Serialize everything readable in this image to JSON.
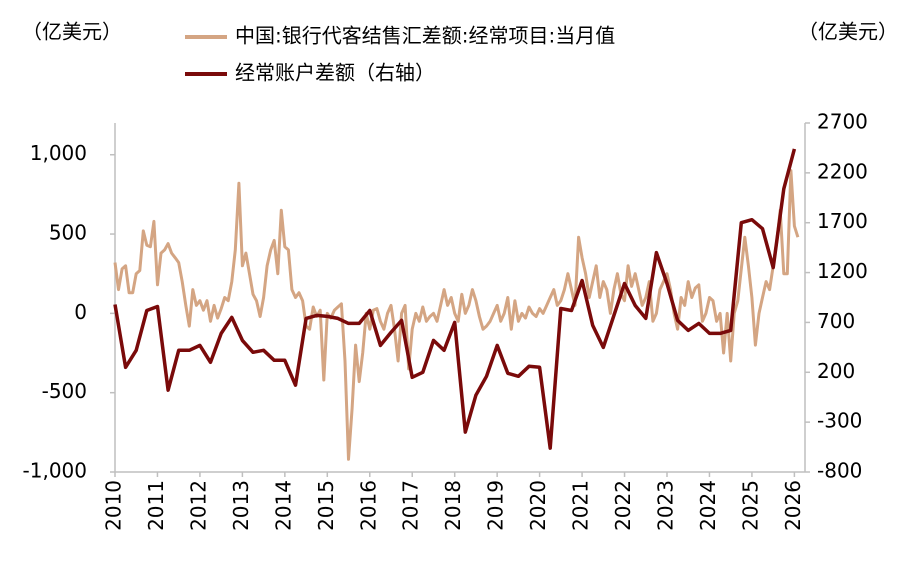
{
  "chart_data": {
    "type": "line",
    "y_label": "（亿美元）",
    "y2_label": "（亿美元）",
    "xlim": [
      2010,
      2026.25
    ],
    "xticks": [
      2010,
      2011,
      2012,
      2013,
      2014,
      2015,
      2016,
      2017,
      2018,
      2019,
      2020,
      2021,
      2022,
      2023,
      2024,
      2025,
      2026
    ],
    "ylim": [
      -1000,
      1200
    ],
    "yticks": [
      {
        "value": 1000,
        "label": "1,000"
      },
      500,
      0,
      -500,
      {
        "value": -1000,
        "label": "-1,000"
      }
    ],
    "y2lim": [
      -800,
      2700
    ],
    "y2ticks": [
      2700,
      2200,
      1700,
      1200,
      700,
      200,
      -300,
      -800
    ],
    "legend": "top",
    "series": [
      {
        "name": "中国:银行代客结售汇差额:经常项目:当月值",
        "color": "#d4a583",
        "x": [
          2010,
          2010.083,
          2010.167,
          2010.25,
          2010.333,
          2010.417,
          2010.5,
          2010.583,
          2010.667,
          2010.75,
          2010.833,
          2010.917,
          2011,
          2011.083,
          2011.167,
          2011.25,
          2011.333,
          2011.417,
          2011.5,
          2011.583,
          2011.667,
          2011.75,
          2011.833,
          2011.917,
          2012,
          2012.083,
          2012.167,
          2012.25,
          2012.333,
          2012.417,
          2012.5,
          2012.583,
          2012.667,
          2012.75,
          2012.833,
          2012.917,
          2013,
          2013.083,
          2013.167,
          2013.25,
          2013.333,
          2013.417,
          2013.5,
          2013.583,
          2013.667,
          2013.75,
          2013.833,
          2013.917,
          2014,
          2014.083,
          2014.167,
          2014.25,
          2014.333,
          2014.417,
          2014.5,
          2014.583,
          2014.667,
          2014.75,
          2014.833,
          2014.917,
          2015,
          2015.083,
          2015.167,
          2015.25,
          2015.333,
          2015.417,
          2015.5,
          2015.583,
          2015.667,
          2015.75,
          2015.833,
          2015.917,
          2016,
          2016.083,
          2016.167,
          2016.25,
          2016.333,
          2016.417,
          2016.5,
          2016.583,
          2016.667,
          2016.75,
          2016.833,
          2016.917,
          2017,
          2017.083,
          2017.167,
          2017.25,
          2017.333,
          2017.417,
          2017.5,
          2017.583,
          2017.667,
          2017.75,
          2017.833,
          2017.917,
          2018,
          2018.083,
          2018.167,
          2018.25,
          2018.333,
          2018.417,
          2018.5,
          2018.583,
          2018.667,
          2018.75,
          2018.833,
          2018.917,
          2019,
          2019.083,
          2019.167,
          2019.25,
          2019.333,
          2019.417,
          2019.5,
          2019.583,
          2019.667,
          2019.75,
          2019.833,
          2019.917,
          2020,
          2020.083,
          2020.167,
          2020.25,
          2020.333,
          2020.417,
          2020.5,
          2020.583,
          2020.667,
          2020.75,
          2020.833,
          2020.917,
          2021,
          2021.083,
          2021.167,
          2021.25,
          2021.333,
          2021.417,
          2021.5,
          2021.583,
          2021.667,
          2021.75,
          2021.833,
          2021.917,
          2022,
          2022.083,
          2022.167,
          2022.25,
          2022.333,
          2022.417,
          2022.5,
          2022.583,
          2022.667,
          2022.75,
          2022.833,
          2022.917,
          2023,
          2023.083,
          2023.167,
          2023.25,
          2023.333,
          2023.417,
          2023.5,
          2023.583,
          2023.667,
          2023.75,
          2023.833,
          2023.917,
          2024,
          2024.083,
          2024.167,
          2024.25,
          2024.333,
          2024.417,
          2024.5,
          2024.583,
          2024.667,
          2024.75,
          2024.833,
          2024.917,
          2025,
          2025.083,
          2025.167,
          2025.25,
          2025.333,
          2025.417,
          2025.5,
          2025.583,
          2025.667,
          2025.75,
          2025.833,
          2025.917,
          2026,
          2026.083
        ],
        "values": [
          320,
          150,
          280,
          300,
          130,
          130,
          250,
          270,
          520,
          430,
          420,
          580,
          180,
          380,
          400,
          440,
          380,
          350,
          320,
          200,
          50,
          -80,
          150,
          50,
          80,
          20,
          80,
          -50,
          50,
          -30,
          30,
          100,
          80,
          200,
          400,
          820,
          300,
          380,
          250,
          120,
          80,
          -20,
          100,
          300,
          400,
          460,
          250,
          650,
          420,
          400,
          150,
          100,
          130,
          80,
          -80,
          -100,
          40,
          -20,
          20,
          -420,
          0,
          -30,
          20,
          40,
          60,
          -300,
          -920,
          -600,
          -200,
          -430,
          -250,
          0,
          -100,
          20,
          30,
          -50,
          -100,
          0,
          50,
          -100,
          -300,
          0,
          50,
          -350,
          -100,
          0,
          -50,
          40,
          -50,
          -20,
          0,
          -50,
          50,
          150,
          50,
          100,
          0,
          -50,
          120,
          0,
          50,
          150,
          80,
          -20,
          -100,
          -80,
          -50,
          0,
          50,
          -50,
          0,
          100,
          -100,
          80,
          -50,
          0,
          -30,
          40,
          0,
          -20,
          30,
          0,
          50,
          100,
          150,
          50,
          80,
          150,
          250,
          150,
          50,
          480,
          350,
          250,
          100,
          200,
          300,
          100,
          200,
          150,
          0,
          150,
          250,
          120,
          80,
          300,
          170,
          250,
          150,
          50,
          100,
          200,
          -50,
          0,
          150,
          200,
          250,
          150,
          0,
          -100,
          100,
          50,
          200,
          100,
          160,
          180,
          -50,
          0,
          100,
          80,
          -50,
          0,
          -250,
          0,
          -300,
          0,
          80,
          280,
          480,
          300,
          100,
          -200,
          0,
          100,
          200,
          150,
          300,
          450,
          650,
          250,
          250,
          900,
          550,
          480
        ]
      },
      {
        "name": "经常账户差额（右轴）",
        "color": "#7a0a0a",
        "axis": "y2",
        "x": [
          2010,
          2010.25,
          2010.5,
          2010.75,
          2011,
          2011.25,
          2011.5,
          2011.75,
          2012,
          2012.25,
          2012.5,
          2012.75,
          2013,
          2013.25,
          2013.5,
          2013.75,
          2014,
          2014.25,
          2014.5,
          2014.75,
          2015,
          2015.25,
          2015.5,
          2015.75,
          2016,
          2016.25,
          2016.5,
          2016.75,
          2017,
          2017.25,
          2017.5,
          2017.75,
          2018,
          2018.25,
          2018.5,
          2018.75,
          2019,
          2019.25,
          2019.5,
          2019.75,
          2020,
          2020.25,
          2020.5,
          2020.75,
          2021,
          2021.25,
          2021.5,
          2021.75,
          2022,
          2022.25,
          2022.5,
          2022.75,
          2023,
          2023.25,
          2023.5,
          2023.75,
          2024,
          2024.25,
          2024.5,
          2024.75,
          2025,
          2025.25,
          2025.5,
          2025.75,
          2026
        ],
        "values": [
          880,
          250,
          420,
          820,
          860,
          20,
          420,
          420,
          470,
          300,
          590,
          750,
          520,
          400,
          420,
          320,
          320,
          70,
          740,
          770,
          760,
          740,
          690,
          690,
          820,
          470,
          600,
          720,
          150,
          200,
          520,
          420,
          700,
          -400,
          -30,
          160,
          470,
          190,
          160,
          260,
          250,
          -560,
          840,
          820,
          1120,
          670,
          450,
          770,
          1090,
          870,
          740,
          1400,
          1090,
          720,
          620,
          690,
          590,
          590,
          620,
          1700,
          1730,
          1640,
          1250,
          2040,
          2440
        ]
      }
    ]
  }
}
